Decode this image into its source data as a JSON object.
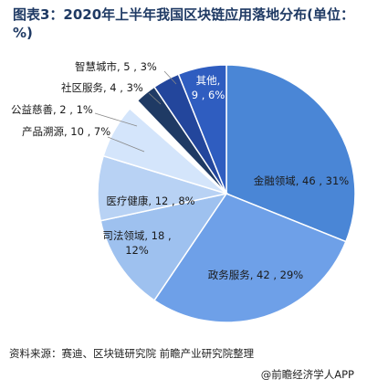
{
  "title": "图表3：2020年上半年我国区块链应用落地分布(单位： %)",
  "source": "资料来源：赛迪、区块链研究院 前瞻产业研究院整理",
  "brand": "@前瞻经济学人APP",
  "chart_data": {
    "type": "pie",
    "title": "图表3：2020年上半年我国区块链应用落地分布(单位： %)",
    "slices": [
      {
        "label": "金融领域",
        "value": 46,
        "percent": 31,
        "text": "金融领域, 46 , 31%",
        "color": "#4a86d6"
      },
      {
        "label": "政务服务",
        "value": 42,
        "percent": 29,
        "text": "政务服务, 42 , 29%",
        "color": "#6ea0e8"
      },
      {
        "label": "司法领域",
        "value": 18,
        "percent": 12,
        "text": "司法领域, 18 ,\n12%",
        "color": "#9ec1ef"
      },
      {
        "label": "医疗健康",
        "value": 12,
        "percent": 8,
        "text": "医疗健康, 12 , 8%",
        "color": "#b8d2f4"
      },
      {
        "label": "产品溯源",
        "value": 10,
        "percent": 7,
        "text": "产品溯源, 10 , 7%",
        "color": "#d4e5fb"
      },
      {
        "label": "公益慈善",
        "value": 2,
        "percent": 1,
        "text": "公益慈善, 2 , 1%",
        "color": "#ffffff"
      },
      {
        "label": "社区服务",
        "value": 4,
        "percent": 3,
        "text": "社区服务, 4 , 3%",
        "color": "#1f3a64"
      },
      {
        "label": "智慧城市",
        "value": 5,
        "percent": 3,
        "text": "智慧城市, 5 , 3%",
        "color": "#23469c"
      },
      {
        "label": "其他",
        "value": 9,
        "percent": 6,
        "text": "其他,\n9 , 6%",
        "color": "#2f5dc0"
      }
    ]
  }
}
